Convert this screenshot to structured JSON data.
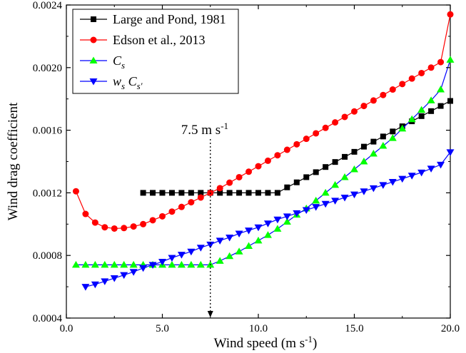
{
  "chart_data": {
    "type": "line",
    "xlabel": "Wind speed (m s",
    "xlabel_sup": "-1",
    "xlabel_end": ")",
    "ylabel": "Wind drag coefficient",
    "xlim": [
      0,
      20
    ],
    "ylim": [
      0.0004,
      0.0024
    ],
    "x_ticks": [
      0,
      5,
      10,
      15,
      20
    ],
    "x_tick_labels": [
      "0.0",
      "5.0",
      "10.0",
      "15.0",
      "20.0"
    ],
    "y_ticks": [
      0.0004,
      0.0008,
      0.0012,
      0.0016,
      0.002,
      0.0024
    ],
    "y_tick_labels": [
      "0.0004",
      "0.0008",
      "0.0012",
      "0.0016",
      "0.0020",
      "0.0024"
    ],
    "grid": false,
    "legend_position": "top-left",
    "annotation": {
      "text": "7.5 m s",
      "sup": "-1",
      "x": 7.5
    },
    "series": [
      {
        "name": "Large and Pond, 1981",
        "color": "#000000",
        "marker": "square",
        "x": [
          4.0,
          4.5,
          5.0,
          5.5,
          6.0,
          6.5,
          7.0,
          7.5,
          8.0,
          8.5,
          9.0,
          9.5,
          10.0,
          10.5,
          11.0,
          11.5,
          12.0,
          12.5,
          13.0,
          13.5,
          14.0,
          14.5,
          15.0,
          15.5,
          16.0,
          16.5,
          17.0,
          17.5,
          18.0,
          18.5,
          19.0,
          19.5,
          20.0
        ],
        "y": [
          0.0012,
          0.0012,
          0.0012,
          0.0012,
          0.0012,
          0.0012,
          0.0012,
          0.0012,
          0.0012,
          0.0012,
          0.0012,
          0.0012,
          0.0012,
          0.0012,
          0.0012,
          0.001235,
          0.001267,
          0.0013,
          0.001332,
          0.001365,
          0.001397,
          0.00143,
          0.001462,
          0.001495,
          0.001527,
          0.00156,
          0.001592,
          0.001625,
          0.001657,
          0.00169,
          0.001722,
          0.001755,
          0.001787
        ]
      },
      {
        "name": "Edson et al., 2013",
        "color": "#ff0000",
        "marker": "circle",
        "x": [
          0.5,
          1.0,
          1.5,
          2.0,
          2.5,
          3.0,
          3.5,
          4.0,
          4.5,
          5.0,
          5.5,
          6.0,
          6.5,
          7.0,
          7.5,
          8.0,
          8.5,
          9.0,
          9.5,
          10.0,
          10.5,
          11.0,
          11.5,
          12.0,
          12.5,
          13.0,
          13.5,
          14.0,
          14.5,
          15.0,
          15.5,
          16.0,
          16.5,
          17.0,
          17.5,
          18.0,
          18.5,
          19.0,
          19.5,
          20.0
        ],
        "y": [
          0.00121,
          0.001065,
          0.00101,
          0.00098,
          0.000972,
          0.000975,
          0.000985,
          0.001,
          0.001025,
          0.00105,
          0.00108,
          0.00111,
          0.00114,
          0.00117,
          0.0012,
          0.00123,
          0.001265,
          0.0013,
          0.001335,
          0.00137,
          0.001405,
          0.00144,
          0.001475,
          0.00151,
          0.001545,
          0.00158,
          0.001615,
          0.00165,
          0.001685,
          0.00172,
          0.001755,
          0.00179,
          0.001825,
          0.00186,
          0.001895,
          0.00193,
          0.001965,
          0.002,
          0.002035,
          0.00234
        ]
      },
      {
        "name": "C",
        "name_sub": "s",
        "color": "#0000ff",
        "fill": "#00ff00",
        "marker": "triangle-up",
        "x": [
          0.5,
          1.0,
          1.5,
          2.0,
          2.5,
          3.0,
          3.5,
          4.0,
          4.5,
          5.0,
          5.5,
          6.0,
          6.5,
          7.0,
          7.5,
          8.0,
          8.5,
          9.0,
          9.5,
          10.0,
          10.5,
          11.0,
          11.5,
          12.0,
          12.5,
          13.0,
          13.5,
          14.0,
          14.5,
          15.0,
          15.5,
          16.0,
          16.5,
          17.0,
          17.5,
          18.0,
          18.5,
          19.0,
          19.5,
          20.0
        ],
        "y": [
          0.00074,
          0.00074,
          0.00074,
          0.00074,
          0.00074,
          0.00074,
          0.00074,
          0.00074,
          0.00074,
          0.00074,
          0.00074,
          0.00074,
          0.00074,
          0.00074,
          0.00074,
          0.000765,
          0.000795,
          0.000825,
          0.00086,
          0.000895,
          0.00093,
          0.00097,
          0.001015,
          0.00106,
          0.0011,
          0.00115,
          0.0012,
          0.00125,
          0.0013,
          0.00135,
          0.0014,
          0.00145,
          0.0015,
          0.00155,
          0.00161,
          0.00167,
          0.00173,
          0.00179,
          0.00186,
          0.00205
        ]
      },
      {
        "name": "w",
        "name_sub": "s",
        "name_2": "C",
        "name_2_sub": "s'",
        "color": "#0000ff",
        "marker": "triangle-down",
        "x": [
          1.0,
          1.5,
          2.0,
          2.5,
          3.0,
          3.5,
          4.0,
          4.5,
          5.0,
          5.5,
          6.0,
          6.5,
          7.0,
          7.5,
          8.0,
          8.5,
          9.0,
          9.5,
          10.0,
          10.5,
          11.0,
          11.5,
          12.0,
          12.5,
          13.0,
          13.5,
          14.0,
          14.5,
          15.0,
          15.5,
          16.0,
          16.5,
          17.0,
          17.5,
          18.0,
          18.5,
          19.0,
          19.5,
          20.0
        ],
        "y": [
          0.0006,
          0.000615,
          0.000635,
          0.000655,
          0.000675,
          0.000695,
          0.00072,
          0.00074,
          0.00076,
          0.000785,
          0.000805,
          0.000825,
          0.00085,
          0.00087,
          0.000895,
          0.000915,
          0.00094,
          0.00096,
          0.00098,
          0.001005,
          0.00103,
          0.00105,
          0.00107,
          0.00109,
          0.00111,
          0.00113,
          0.00115,
          0.00117,
          0.00119,
          0.00121,
          0.00123,
          0.00125,
          0.00127,
          0.00129,
          0.00131,
          0.00133,
          0.001355,
          0.00138,
          0.00146
        ]
      }
    ]
  }
}
